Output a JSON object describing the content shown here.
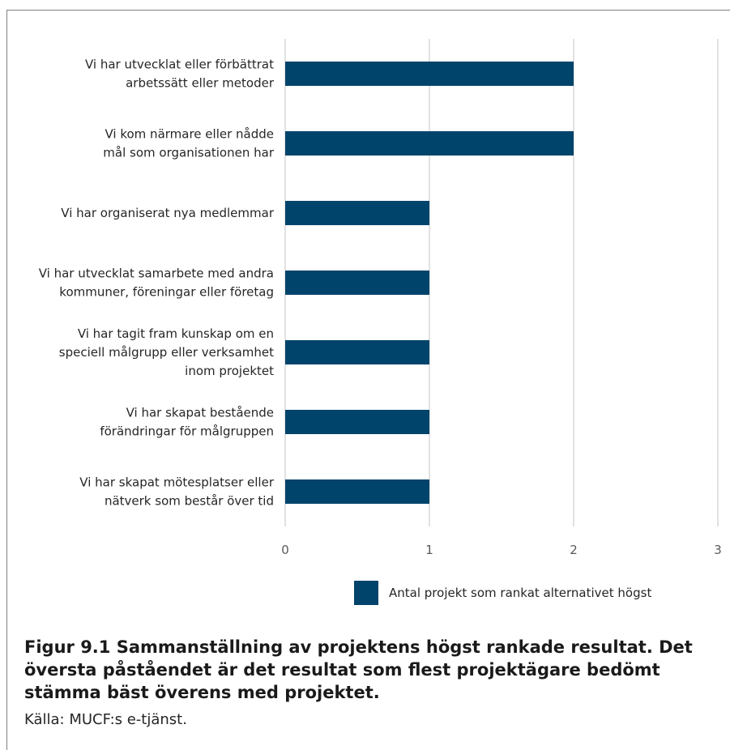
{
  "chart_data": {
    "type": "bar",
    "orientation": "horizontal",
    "categories": [
      [
        "Vi har utvecklat eller förbättrat",
        "arbetssätt eller metoder"
      ],
      [
        "Vi kom närmare eller nådde",
        "mål som organisationen har"
      ],
      [
        "Vi har organiserat nya medlemmar"
      ],
      [
        "Vi har utvecklat samarbete med andra",
        "kommuner, föreningar eller företag"
      ],
      [
        "Vi har tagit fram kunskap om en",
        "speciell målgrupp eller verksamhet",
        "inom projektet"
      ],
      [
        "Vi har skapat bestående",
        "förändringar för målgruppen"
      ],
      [
        "Vi har skapat mötesplatser eller",
        "nätverk som består över tid"
      ]
    ],
    "series": [
      {
        "name": "Antal projekt som rankat alternativet högst",
        "values": [
          2,
          2,
          1,
          1,
          1,
          1,
          1
        ],
        "color": "#00446b"
      }
    ],
    "xlim": [
      0,
      3
    ],
    "xticks": [
      "0",
      "1",
      "2",
      "3"
    ],
    "grid": "vertical",
    "legend": "bottom"
  },
  "caption": {
    "title": "Figur 9.1 Sammanställning av projektens högst rankade resultat. Det översta påståendet är det resultat som flest projektägare bedömt stämma bäst överens med projektet.",
    "source": "Källa: MUCF:s e-tjänst."
  }
}
